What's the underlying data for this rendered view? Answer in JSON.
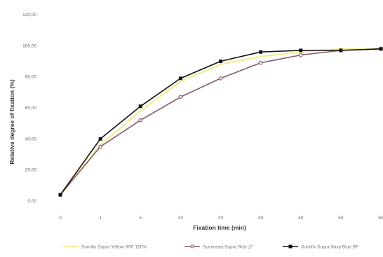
{
  "chart_data": {
    "type": "line",
    "title": "",
    "xlabel": "Fixation time (min)",
    "ylabel": "Relative degree of fixation (%)",
    "categories": [
      "0",
      "1",
      "5",
      "10",
      "20",
      "30",
      "40",
      "50",
      "60"
    ],
    "ylim": [
      0,
      120
    ],
    "yticks": [
      "0,00",
      "20,00",
      "40,00",
      "60,00",
      "80,00",
      "100,00",
      "120,00"
    ],
    "grid": false,
    "legend_position": "bottom",
    "series": [
      {
        "name": "Sumifix Supra Yellow 3RF 150%",
        "color": "#f2ef9a",
        "marker": "none",
        "values": [
          4,
          36,
          58,
          77,
          88,
          93,
          96,
          98,
          98
        ]
      },
      {
        "name": "Sumireact Supra Red LF",
        "color": "#8a5a6a",
        "marker": "circle",
        "values": [
          4,
          35,
          52,
          67,
          79,
          89,
          94,
          97,
          98
        ]
      },
      {
        "name": "Sumifix Supra Navy Blue BF",
        "color": "#111111",
        "marker": "square",
        "values": [
          4,
          40,
          61,
          79,
          90,
          96,
          97,
          97,
          98
        ]
      }
    ]
  }
}
